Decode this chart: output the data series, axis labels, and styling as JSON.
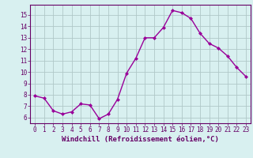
{
  "x": [
    0,
    1,
    2,
    3,
    4,
    5,
    6,
    7,
    8,
    9,
    10,
    11,
    12,
    13,
    14,
    15,
    16,
    17,
    18,
    19,
    20,
    21,
    22,
    23
  ],
  "y": [
    7.9,
    7.7,
    6.6,
    6.3,
    6.5,
    7.2,
    7.1,
    5.9,
    6.3,
    7.6,
    9.9,
    11.2,
    13.0,
    13.0,
    13.9,
    15.4,
    15.2,
    14.7,
    13.4,
    12.5,
    12.1,
    11.4,
    10.4,
    9.6
  ],
  "line_color": "#990099",
  "marker": "D",
  "marker_size": 2.0,
  "linewidth": 1.0,
  "bg_color": "#d8f0f0",
  "grid_color": "#b0c8c8",
  "xlabel": "Windchill (Refroidissement éolien,°C)",
  "xlim": [
    -0.5,
    23.5
  ],
  "ylim": [
    5.5,
    15.9
  ],
  "yticks": [
    6,
    7,
    8,
    9,
    10,
    11,
    12,
    13,
    14,
    15
  ],
  "xticks": [
    0,
    1,
    2,
    3,
    4,
    5,
    6,
    7,
    8,
    9,
    10,
    11,
    12,
    13,
    14,
    15,
    16,
    17,
    18,
    19,
    20,
    21,
    22,
    23
  ],
  "tick_fontsize": 5.5,
  "xlabel_fontsize": 6.5,
  "axis_color": "#660066",
  "spine_color": "#660066"
}
